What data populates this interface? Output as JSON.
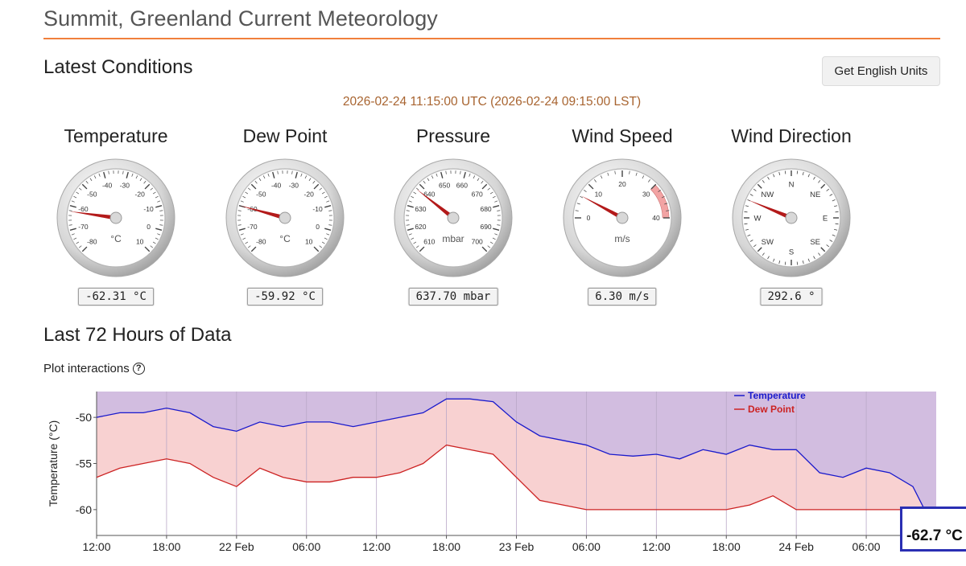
{
  "page": {
    "title": "Summit, Greenland Current Meteorology"
  },
  "latest": {
    "title": "Latest Conditions",
    "english_button": "Get English Units",
    "timestamp": "2026-02-24 11:15:00 UTC (2026-02-24 09:15:00 LST)"
  },
  "gauges": [
    {
      "label": "Temperature",
      "readout": "-62.31 °C",
      "unit": "°C",
      "ticks": [
        "-80",
        "-70",
        "-60",
        "-50",
        "-40",
        "-30",
        "-20",
        "-10",
        "0",
        "10"
      ],
      "min": -80,
      "max": 10,
      "value": -62.31
    },
    {
      "label": "Dew Point",
      "readout": "-59.92 °C",
      "unit": "°C",
      "ticks": [
        "-80",
        "-70",
        "-60",
        "-50",
        "-40",
        "-30",
        "-20",
        "-10",
        "0",
        "10"
      ],
      "min": -80,
      "max": 10,
      "value": -59.92
    },
    {
      "label": "Pressure",
      "readout": "637.70 mbar",
      "unit": "mbar",
      "ticks": [
        "610",
        "620",
        "630",
        "640",
        "650",
        "660",
        "670",
        "680",
        "690",
        "700"
      ],
      "min": 610,
      "max": 700,
      "value": 637.7
    },
    {
      "label": "Wind Speed",
      "readout": "6.30 m/s",
      "unit": "m/s",
      "ticks": [
        "0",
        "10",
        "20",
        "30",
        "40"
      ],
      "min": 0,
      "max": 40,
      "value": 6.3
    },
    {
      "label": "Wind Direction",
      "readout": "292.6 °",
      "unit": "",
      "ticks": [
        "N",
        "NE",
        "E",
        "SE",
        "S",
        "SW",
        "W",
        "NW"
      ],
      "min": 0,
      "max": 360,
      "value": 292.6
    }
  ],
  "history": {
    "title": "Last 72 Hours of Data",
    "interactions_label": "Plot interactions",
    "hover_value": "-62.7 °C"
  },
  "colors": {
    "temperature": "#1a1acc",
    "dew_point": "#cc2222",
    "upper_fill": "#d2bde0",
    "band_fill": "#f8d1d1",
    "accent": "#f07f3c",
    "needle": "#b31a1a"
  },
  "chart_data": {
    "type": "line",
    "title": "",
    "xlabel": "",
    "ylabel": "Temperature (°C)",
    "x_ticks": [
      "12:00",
      "18:00",
      "22 Feb",
      "06:00",
      "12:00",
      "18:00",
      "23 Feb",
      "06:00",
      "12:00",
      "18:00",
      "24 Feb",
      "06:00"
    ],
    "y_ticks": [
      -50,
      -55,
      -60
    ],
    "ylim": [
      -62.8,
      -47.2
    ],
    "legend": "top-right",
    "x_hours": [
      0,
      2,
      4,
      6,
      8,
      10,
      12,
      14,
      16,
      18,
      20,
      22,
      24,
      26,
      28,
      30,
      32,
      34,
      36,
      38,
      40,
      42,
      44,
      46,
      48,
      50,
      52,
      54,
      56,
      58,
      60,
      62,
      64,
      66,
      68,
      70,
      71,
      72
    ],
    "series": [
      {
        "name": "Temperature",
        "values": [
          -50,
          -49.5,
          -49.5,
          -49,
          -49.5,
          -51,
          -51.5,
          -50.5,
          -51,
          -50.5,
          -50.5,
          -51,
          -50.5,
          -50,
          -49.5,
          -48,
          -48,
          -48.3,
          -50.5,
          -52,
          -52.5,
          -53,
          -54,
          -54.2,
          -54,
          -54.5,
          -53.5,
          -54,
          -53,
          -53.5,
          -53.5,
          -56,
          -56.5,
          -55.5,
          -56,
          -57.5,
          -60,
          -62.7
        ]
      },
      {
        "name": "Dew Point",
        "values": [
          -56.5,
          -55.5,
          -55,
          -54.5,
          -55,
          -56.5,
          -57.5,
          -55.5,
          -56.5,
          -57,
          -57,
          -56.5,
          -56.5,
          -56,
          -55,
          -53,
          -53.5,
          -54,
          -56.5,
          -59,
          -59.5,
          -60,
          -60,
          -60,
          -60,
          -60,
          -60,
          -60,
          -59.5,
          -58.5,
          -60,
          -60,
          -60,
          -60,
          -60,
          -60,
          -60,
          -60
        ]
      }
    ]
  }
}
